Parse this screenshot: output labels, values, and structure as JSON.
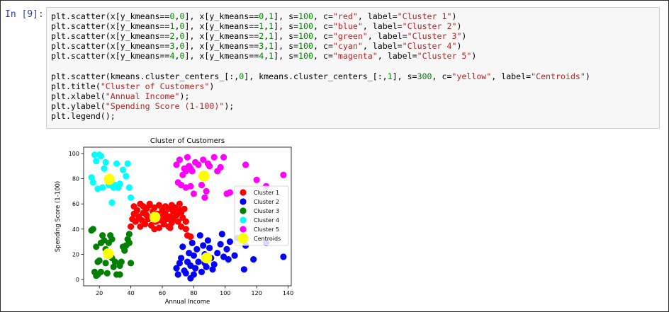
{
  "cell": {
    "prompt": "In [9]:"
  },
  "code_lines": [
    [
      [
        "plt.scatter(x[y_kmeans==",
        ""
      ],
      [
        "0",
        "n"
      ],
      [
        ",",
        ""
      ],
      [
        "0",
        "n"
      ],
      [
        "], x[y_kmeans==",
        ""
      ],
      [
        "0",
        "n"
      ],
      [
        ",",
        ""
      ],
      [
        "1",
        "n"
      ],
      [
        "], s=",
        ""
      ],
      [
        "100",
        "n"
      ],
      [
        ", c=",
        ""
      ],
      [
        "\"red\"",
        "s"
      ],
      [
        ", label=",
        ""
      ],
      [
        "\"Cluster 1\"",
        "s"
      ],
      [
        ")",
        ""
      ]
    ],
    [
      [
        "plt.scatter(x[y_kmeans==",
        ""
      ],
      [
        "1",
        "n"
      ],
      [
        ",",
        ""
      ],
      [
        "0",
        "n"
      ],
      [
        "], x[y_kmeans==",
        ""
      ],
      [
        "1",
        "n"
      ],
      [
        ",",
        ""
      ],
      [
        "1",
        "n"
      ],
      [
        "], s=",
        ""
      ],
      [
        "100",
        "n"
      ],
      [
        ", c=",
        ""
      ],
      [
        "\"blue\"",
        "s"
      ],
      [
        ", label=",
        ""
      ],
      [
        "\"Cluster 2\"",
        "s"
      ],
      [
        ")",
        ""
      ]
    ],
    [
      [
        "plt.scatter(x[y_kmeans==",
        ""
      ],
      [
        "2",
        "n"
      ],
      [
        ",",
        ""
      ],
      [
        "0",
        "n"
      ],
      [
        "], x[y_kmeans==",
        ""
      ],
      [
        "2",
        "n"
      ],
      [
        ",",
        ""
      ],
      [
        "1",
        "n"
      ],
      [
        "], s=",
        ""
      ],
      [
        "100",
        "n"
      ],
      [
        ", c=",
        ""
      ],
      [
        "\"green\"",
        "s"
      ],
      [
        ", label=",
        ""
      ],
      [
        "\"Cluster 3\"",
        "s"
      ],
      [
        ")",
        ""
      ]
    ],
    [
      [
        "plt.scatter(x[y_kmeans==",
        ""
      ],
      [
        "3",
        "n"
      ],
      [
        ",",
        ""
      ],
      [
        "0",
        "n"
      ],
      [
        "], x[y_kmeans==",
        ""
      ],
      [
        "3",
        "n"
      ],
      [
        ",",
        ""
      ],
      [
        "1",
        "n"
      ],
      [
        "], s=",
        ""
      ],
      [
        "100",
        "n"
      ],
      [
        ", c=",
        ""
      ],
      [
        "\"cyan\"",
        "s"
      ],
      [
        ", label=",
        ""
      ],
      [
        "\"Cluster 4\"",
        "s"
      ],
      [
        ")",
        ""
      ]
    ],
    [
      [
        "plt.scatter(x[y_kmeans==",
        ""
      ],
      [
        "4",
        "n"
      ],
      [
        ",",
        ""
      ],
      [
        "0",
        "n"
      ],
      [
        "], x[y_kmeans==",
        ""
      ],
      [
        "4",
        "n"
      ],
      [
        ",",
        ""
      ],
      [
        "1",
        "n"
      ],
      [
        "], s=",
        ""
      ],
      [
        "100",
        "n"
      ],
      [
        ", c=",
        ""
      ],
      [
        "\"magenta\"",
        "s"
      ],
      [
        ", label=",
        ""
      ],
      [
        "\"Cluster 5\"",
        "s"
      ],
      [
        ")",
        ""
      ]
    ],
    [],
    [
      [
        "plt.scatter(kmeans.cluster_centers_[:,",
        ""
      ],
      [
        "0",
        "n"
      ],
      [
        "], kmeans.cluster_centers_[:,",
        ""
      ],
      [
        "1",
        "n"
      ],
      [
        "], s=",
        ""
      ],
      [
        "300",
        "n"
      ],
      [
        ", c=",
        ""
      ],
      [
        "\"yellow\"",
        "s"
      ],
      [
        ", label=",
        ""
      ],
      [
        "\"Centroids\"",
        "s"
      ],
      [
        ")",
        ""
      ]
    ],
    [
      [
        "plt.title(",
        ""
      ],
      [
        "\"Cluster of Customers\"",
        "s"
      ],
      [
        ")",
        ""
      ]
    ],
    [
      [
        "plt.xlabel(",
        ""
      ],
      [
        "\"Annual Income\"",
        "s"
      ],
      [
        ");",
        ""
      ]
    ],
    [
      [
        "plt.ylabel(",
        ""
      ],
      [
        "\"Spending Score (1-100)\"",
        "s"
      ],
      [
        ");",
        ""
      ]
    ],
    [
      [
        "plt.legend();",
        ""
      ]
    ]
  ],
  "chart_data": {
    "type": "scatter",
    "title": "Cluster of Customers",
    "xlabel": "Annual Income",
    "ylabel": "Spending Score (1-100)",
    "xlim": [
      10,
      142
    ],
    "ylim": [
      -5,
      105
    ],
    "xticks": [
      20,
      40,
      60,
      80,
      100,
      120,
      140
    ],
    "yticks": [
      0,
      20,
      40,
      60,
      80,
      100
    ],
    "legend_position": "center-right",
    "series": [
      {
        "name": "Cluster 1",
        "color": "#ff0000",
        "points": [
          [
            40,
            42
          ],
          [
            41,
            48
          ],
          [
            42,
            52
          ],
          [
            42,
            58
          ],
          [
            43,
            46
          ],
          [
            44,
            55
          ],
          [
            45,
            50
          ],
          [
            46,
            60
          ],
          [
            46,
            42
          ],
          [
            47,
            47
          ],
          [
            48,
            53
          ],
          [
            48,
            58
          ],
          [
            49,
            44
          ],
          [
            50,
            51
          ],
          [
            50,
            56
          ],
          [
            51,
            48
          ],
          [
            52,
            59
          ],
          [
            53,
            43
          ],
          [
            54,
            54
          ],
          [
            54,
            49
          ],
          [
            55,
            57
          ],
          [
            56,
            46
          ],
          [
            57,
            52
          ],
          [
            58,
            41
          ],
          [
            58,
            59
          ],
          [
            59,
            47
          ],
          [
            60,
            55
          ],
          [
            60,
            50
          ],
          [
            61,
            44
          ],
          [
            62,
            58
          ],
          [
            62,
            52
          ],
          [
            63,
            48
          ],
          [
            64,
            56
          ],
          [
            64,
            42
          ],
          [
            65,
            50
          ],
          [
            66,
            59
          ],
          [
            66,
            45
          ],
          [
            67,
            54
          ],
          [
            67,
            48
          ],
          [
            68,
            57
          ],
          [
            69,
            51
          ],
          [
            70,
            46
          ],
          [
            71,
            60
          ],
          [
            72,
            53
          ],
          [
            72,
            42
          ],
          [
            73,
            49
          ],
          [
            74,
            56
          ],
          [
            75,
            40
          ],
          [
            76,
            35
          ],
          [
            78,
            34
          ],
          [
            75,
            46
          ],
          [
            71,
            55
          ],
          [
            65,
            41
          ],
          [
            55,
            40
          ],
          [
            52,
            60
          ]
        ]
      },
      {
        "name": "Cluster 2",
        "color": "#0000ff",
        "points": [
          [
            69,
            9
          ],
          [
            70,
            4
          ],
          [
            71,
            13
          ],
          [
            72,
            17
          ],
          [
            73,
            26
          ],
          [
            74,
            7
          ],
          [
            75,
            5
          ],
          [
            76,
            14
          ],
          [
            77,
            21
          ],
          [
            78,
            11
          ],
          [
            78,
            1
          ],
          [
            79,
            29
          ],
          [
            80,
            19
          ],
          [
            80,
            4
          ],
          [
            81,
            9
          ],
          [
            82,
            24
          ],
          [
            83,
            14
          ],
          [
            84,
            35
          ],
          [
            85,
            6
          ],
          [
            86,
            27
          ],
          [
            87,
            20
          ],
          [
            87,
            13
          ],
          [
            88,
            10
          ],
          [
            89,
            31
          ],
          [
            90,
            25
          ],
          [
            91,
            17
          ],
          [
            92,
            8
          ],
          [
            93,
            12
          ],
          [
            95,
            21
          ],
          [
            97,
            28
          ],
          [
            98,
            36
          ],
          [
            99,
            18
          ],
          [
            101,
            24
          ],
          [
            102,
            16
          ],
          [
            103,
            30
          ],
          [
            106,
            19
          ],
          [
            108,
            33
          ],
          [
            112,
            8
          ],
          [
            113,
            27
          ],
          [
            118,
            16
          ],
          [
            126,
            29
          ],
          [
            137,
            18
          ]
        ]
      },
      {
        "name": "Cluster 3",
        "color": "#008000",
        "points": [
          [
            15,
            39
          ],
          [
            16,
            40
          ],
          [
            17,
            6
          ],
          [
            18,
            3
          ],
          [
            19,
            4
          ],
          [
            19,
            14
          ],
          [
            20,
            15
          ],
          [
            21,
            29
          ],
          [
            22,
            35
          ],
          [
            23,
            31
          ],
          [
            24,
            13
          ],
          [
            25,
            5
          ],
          [
            26,
            29
          ],
          [
            27,
            35
          ],
          [
            28,
            17
          ],
          [
            29,
            10
          ],
          [
            30,
            14
          ],
          [
            31,
            4
          ],
          [
            33,
            4
          ],
          [
            34,
            14
          ],
          [
            35,
            26
          ],
          [
            37,
            27
          ],
          [
            38,
            32
          ],
          [
            39,
            36
          ],
          [
            39,
            29
          ],
          [
            40,
            13
          ],
          [
            18,
            26
          ],
          [
            21,
            6
          ],
          [
            24,
            24
          ],
          [
            28,
            32
          ],
          [
            33,
            11
          ],
          [
            36,
            23
          ]
        ]
      },
      {
        "name": "Cluster 4",
        "color": "#00ffff",
        "points": [
          [
            15,
            81
          ],
          [
            16,
            77
          ],
          [
            17,
            99
          ],
          [
            18,
            94
          ],
          [
            19,
            72
          ],
          [
            20,
            99
          ],
          [
            21,
            98
          ],
          [
            22,
            73
          ],
          [
            23,
            88
          ],
          [
            24,
            93
          ],
          [
            25,
            79
          ],
          [
            26,
            75
          ],
          [
            27,
            77
          ],
          [
            28,
            61
          ],
          [
            29,
            73
          ],
          [
            30,
            75
          ],
          [
            31,
            92
          ],
          [
            32,
            73
          ],
          [
            33,
            76
          ],
          [
            35,
            87
          ],
          [
            37,
            82
          ],
          [
            38,
            92
          ],
          [
            39,
            73
          ],
          [
            40,
            65
          ]
        ]
      },
      {
        "name": "Cluster 5",
        "color": "#ff00ff",
        "points": [
          [
            69,
            91
          ],
          [
            70,
            77
          ],
          [
            71,
            95
          ],
          [
            72,
            75
          ],
          [
            73,
            83
          ],
          [
            74,
            88
          ],
          [
            75,
            86
          ],
          [
            75,
            73
          ],
          [
            76,
            97
          ],
          [
            77,
            90
          ],
          [
            78,
            74
          ],
          [
            78,
            88
          ],
          [
            79,
            86
          ],
          [
            80,
            68
          ],
          [
            81,
            93
          ],
          [
            83,
            91
          ],
          [
            85,
            75
          ],
          [
            86,
            95
          ],
          [
            87,
            65
          ],
          [
            87,
            83
          ],
          [
            88,
            70
          ],
          [
            89,
            92
          ],
          [
            90,
            90
          ],
          [
            93,
            97
          ],
          [
            95,
            86
          ],
          [
            97,
            89
          ],
          [
            99,
            97
          ],
          [
            101,
            68
          ],
          [
            103,
            69
          ],
          [
            113,
            91
          ],
          [
            120,
            79
          ],
          [
            126,
            74
          ],
          [
            137,
            83
          ]
        ]
      },
      {
        "name": "Centroids",
        "color": "#ffff00",
        "size": "large",
        "points": [
          [
            26.3,
            79.4
          ],
          [
            55.3,
            49.5
          ],
          [
            86.5,
            82.1
          ],
          [
            25.7,
            20.5
          ],
          [
            88.2,
            17.1
          ]
        ]
      }
    ]
  }
}
